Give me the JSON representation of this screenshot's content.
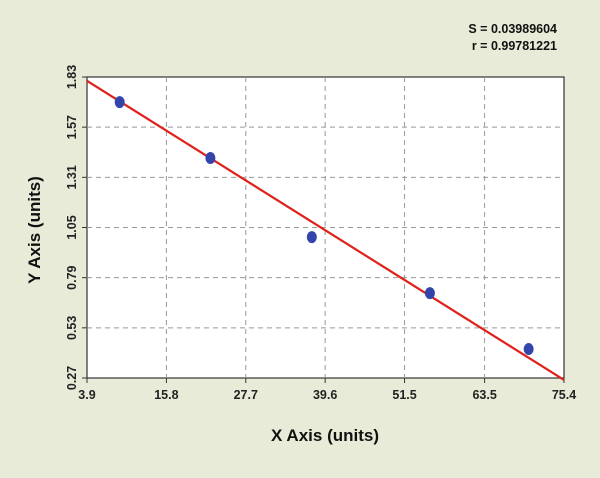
{
  "chart_data": {
    "type": "scatter",
    "title": "",
    "xlabel": "X Axis (units)",
    "ylabel": "Y Axis (units)",
    "xlim": [
      3.9,
      75.4
    ],
    "ylim": [
      0.27,
      1.83
    ],
    "x_ticks": [
      "3.9",
      "15.8",
      "27.7",
      "39.6",
      "51.5",
      "63.5",
      "75.4"
    ],
    "y_ticks": [
      "1.83",
      "1.57",
      "1.31",
      "1.05",
      "0.79",
      "0.53",
      "0.27"
    ],
    "grid": true,
    "annotations": [
      "S = 0.03989604",
      "r = 0.99781221"
    ],
    "series": [
      {
        "kind": "points",
        "x": [
          8.8,
          22.4,
          37.6,
          55.3,
          70.1
        ],
        "y": [
          1.7,
          1.41,
          1.0,
          0.71,
          0.42
        ],
        "color": "#3344aa"
      },
      {
        "kind": "fit-line",
        "x": [
          3.9,
          75.4
        ],
        "y": [
          1.81,
          0.26
        ],
        "color": "#e0201b"
      }
    ]
  }
}
